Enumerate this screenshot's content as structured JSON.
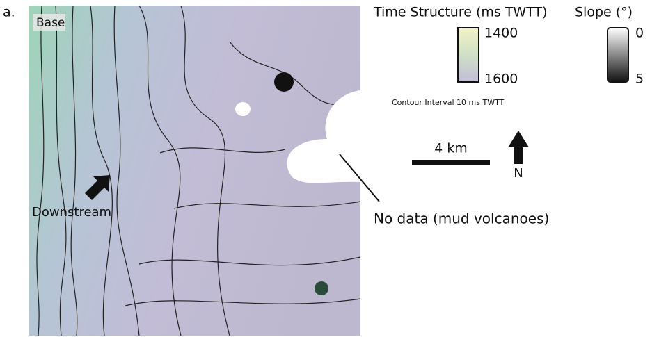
{
  "panel_label": "a.",
  "map": {
    "surface_label": "Base",
    "flow_label": "Downstream",
    "no_data_label": "No data (mud volcanoes)"
  },
  "legend": {
    "time_title": "Time Structure (ms TWTT)",
    "time_top": "1400",
    "time_bottom": "1600",
    "slope_title": "Slope (°)",
    "slope_top": "0",
    "slope_bottom": "5",
    "contour_note": "Contour Interval 10 ms TWTT",
    "scale_label": "4 km",
    "north_label": "N"
  }
}
